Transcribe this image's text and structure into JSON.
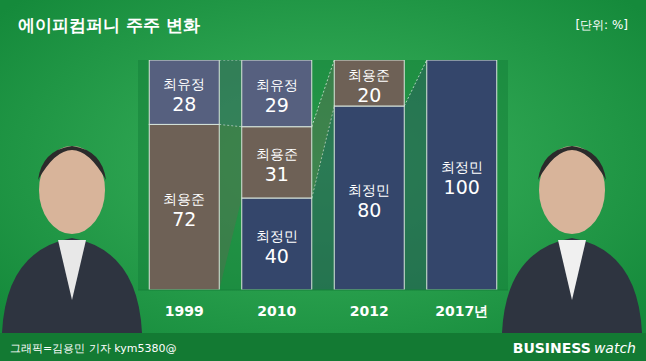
{
  "chart_data": {
    "type": "bar",
    "stacked": true,
    "title": "에이피컴퍼니 주주 변화",
    "subtitle": "[단위: %]",
    "annotations": [
      "그래픽=김용민 기자 kym5380@",
      "BUSINESS",
      "watch"
    ],
    "categories": [
      "1999",
      "2010",
      "2012",
      "2017년"
    ],
    "series": [
      {
        "name": "최정민",
        "color": "#34466b",
        "values": [
          null,
          40,
          80,
          100
        ]
      },
      {
        "name": "최용준",
        "color": "#6e6156",
        "values": [
          72,
          31,
          20,
          null
        ]
      },
      {
        "name": "최유정",
        "color": "#56607f",
        "values": [
          28,
          29,
          null,
          null
        ]
      }
    ],
    "ylim": [
      0,
      100
    ],
    "tick_labels": "x",
    "data_labels": true,
    "grid": false
  }
}
